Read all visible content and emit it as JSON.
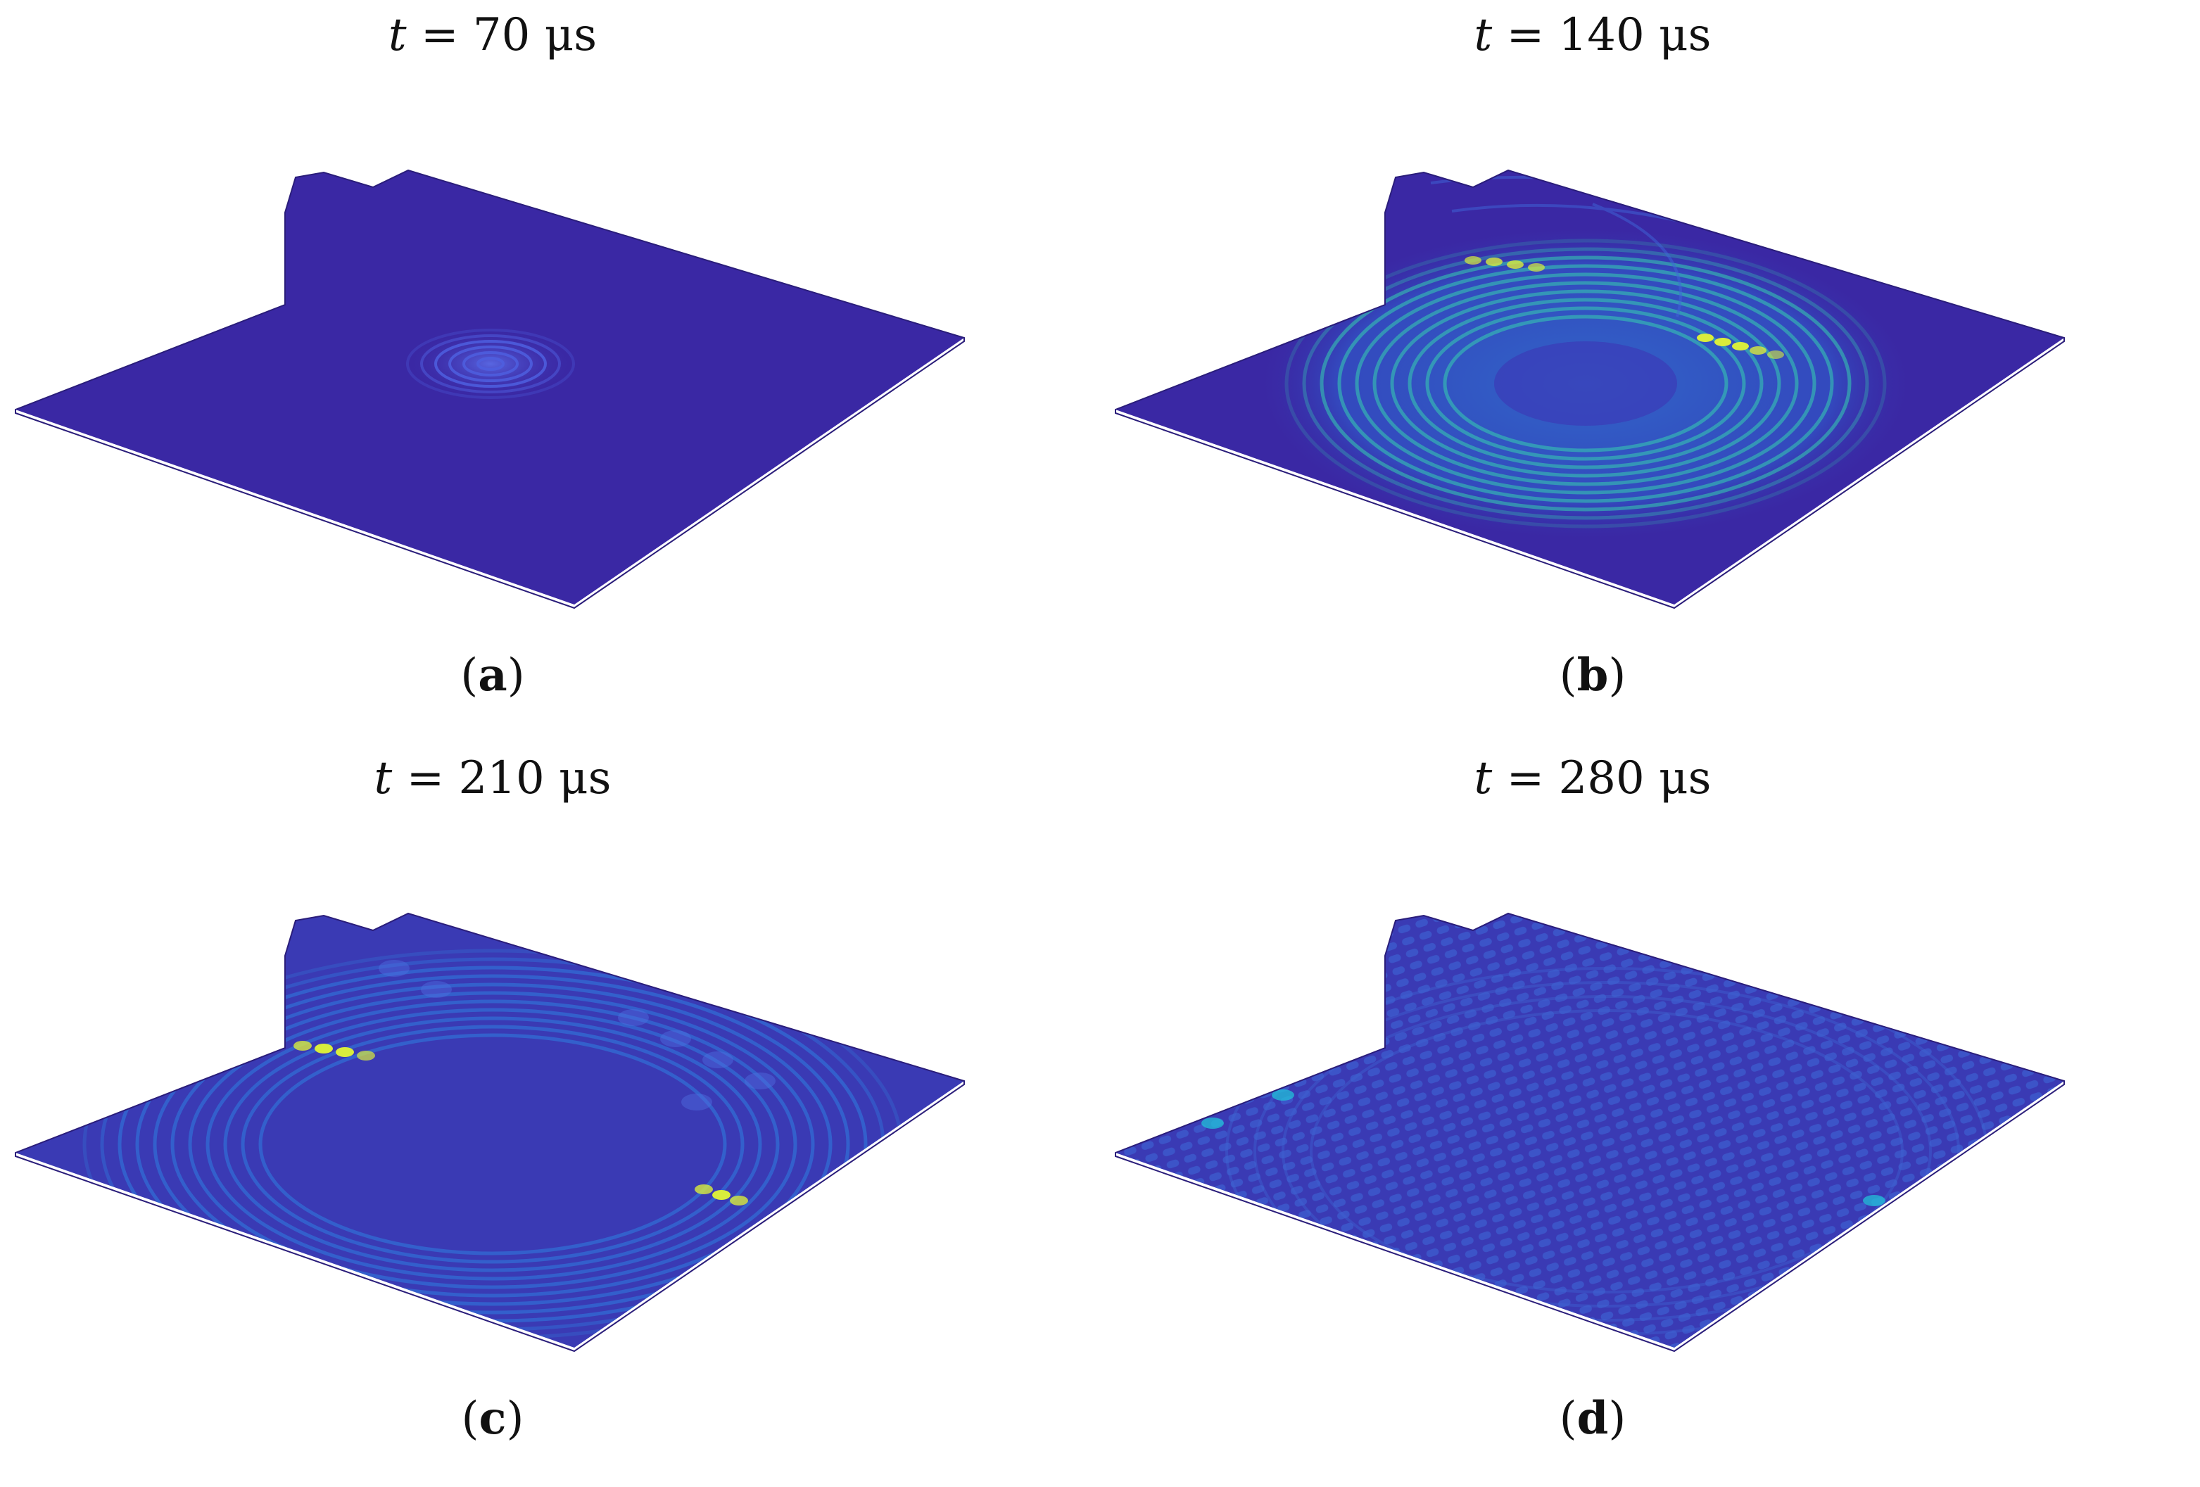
{
  "colors": {
    "background": "#3a28a4",
    "ring_low": "#3246c8",
    "ring_mid": "#2f7fe0",
    "ring_high": "#1fb8d6",
    "hotspot": "#d9ec3c",
    "hotspot_edge": "#47d08a"
  },
  "panels": [
    {
      "time_label": "t",
      "time_rest": " = 70 μs",
      "sub": "a",
      "state": "early"
    },
    {
      "time_label": "t",
      "time_rest": " = 140 μs",
      "sub": "b",
      "state": "mid"
    },
    {
      "time_label": "t",
      "time_rest": " = 210 μs",
      "sub": "c",
      "state": "late"
    },
    {
      "time_label": "t",
      "time_rest": " = 280 μs",
      "sub": "d",
      "state": "scattered"
    }
  ],
  "paren_open": "(",
  "paren_close": ")"
}
